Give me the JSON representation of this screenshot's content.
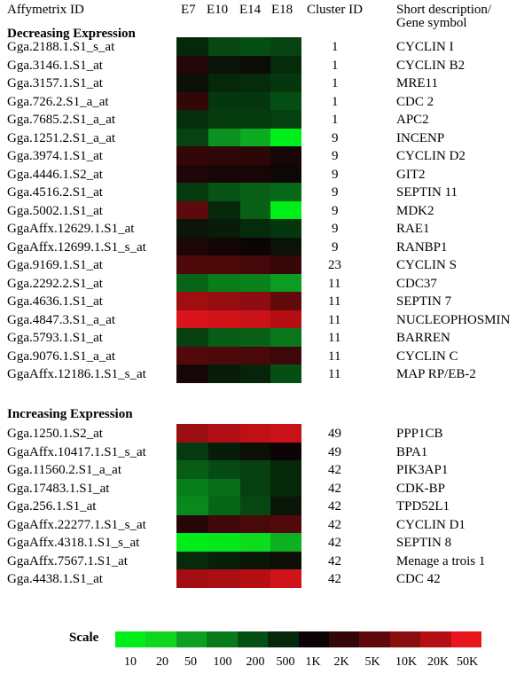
{
  "headers": {
    "probe_id": "Affymetrix ID",
    "samples": [
      "E7",
      "E10",
      "E14",
      "E18"
    ],
    "cluster_id": "Cluster ID",
    "description": "Short description/ Gene symbol"
  },
  "chart_data": {
    "type": "heatmap",
    "columns": [
      "E7",
      "E10",
      "E14",
      "E18"
    ],
    "scale": {
      "title": "Scale",
      "ticks": [
        "10",
        "20",
        "50",
        "100",
        "200",
        "500",
        "1K",
        "2K",
        "5K",
        "10K",
        "20K",
        "50K"
      ],
      "colors": [
        "#00ee1a",
        "#10d61e",
        "#0ba022",
        "#087a1a",
        "#064f14",
        "#05270a",
        "#0d0505",
        "#330708",
        "#5e0a0c",
        "#8a0d10",
        "#b50f14",
        "#e8161c"
      ]
    },
    "groups": [
      {
        "title": "Decreasing Expression",
        "rows": [
          {
            "id": "Gga.2188.1.S1_s_at",
            "cluster": "1",
            "symbol": "CYCLIN I",
            "levels": [
              6.0,
              5.2,
              5.0,
              5.3
            ]
          },
          {
            "id": "Gga.3146.1.S1_at",
            "cluster": "1",
            "symbol": "CYCLIN B2",
            "levels": [
              7.6,
              6.6,
              6.8,
              5.9
            ]
          },
          {
            "id": "Gga.3157.1.S1_at",
            "cluster": "1",
            "symbol": "MRE11",
            "levels": [
              6.7,
              6.0,
              5.9,
              5.6
            ]
          },
          {
            "id": "Gga.726.2.S1_a_at",
            "cluster": "1",
            "symbol": "CDC 2",
            "levels": [
              8.0,
              5.6,
              5.6,
              5.0
            ]
          },
          {
            "id": "Gga.7685.2.S1_a_at",
            "cluster": "1",
            "symbol": "APC2",
            "levels": [
              5.8,
              5.5,
              5.5,
              5.4
            ]
          },
          {
            "id": "Gga.1251.2.S1_a_at",
            "cluster": "9",
            "symbol": "INCENP",
            "levels": [
              5.3,
              3.4,
              2.8,
              1.0
            ]
          },
          {
            "id": "Gga.3974.1.S1_at",
            "cluster": "9",
            "symbol": "CYCLIN D2",
            "levels": [
              8.0,
              7.9,
              7.8,
              7.3
            ]
          },
          {
            "id": "Gga.4446.1.S2_at",
            "cluster": "9",
            "symbol": "GIT2",
            "levels": [
              7.5,
              7.3,
              7.3,
              6.9
            ]
          },
          {
            "id": "Gga.4516.2.S1_at",
            "cluster": "9",
            "symbol": "SEPTIN 11",
            "levels": [
              5.5,
              4.9,
              4.6,
              4.4
            ]
          },
          {
            "id": "Gga.5002.1.S1_at",
            "cluster": "9",
            "symbol": "MDK2",
            "levels": [
              9.0,
              6.0,
              4.6,
              1.0
            ]
          },
          {
            "id": "GgaAffx.12629.1.S1_at",
            "cluster": "9",
            "symbol": "RAE1",
            "levels": [
              6.5,
              6.3,
              5.9,
              5.6
            ]
          },
          {
            "id": "GgaAffx.12699.1.S1_s_at",
            "cluster": "9",
            "symbol": "RANBP1",
            "levels": [
              7.4,
              7.1,
              7.0,
              6.6
            ]
          },
          {
            "id": "Gga.9169.1.S1_at",
            "cluster": "23",
            "symbol": "CYCLIN S",
            "levels": [
              8.6,
              8.6,
              8.4,
              8.1
            ]
          },
          {
            "id": "Gga.2292.2.S1_at",
            "cluster": "11",
            "symbol": "CDC37",
            "levels": [
              4.5,
              3.9,
              3.8,
              3.1
            ]
          },
          {
            "id": "Gga.4636.1.S1_at",
            "cluster": "11",
            "symbol": "SEPTIN 7",
            "levels": [
              10.5,
              10.2,
              10.1,
              9.1
            ]
          },
          {
            "id": "Gga.4847.3.S1_a_at",
            "cluster": "11",
            "symbol": "NUCLEOPHOSMIN",
            "levels": [
              11.7,
              11.5,
              11.4,
              11.0
            ]
          },
          {
            "id": "Gga.5793.1.S1_at",
            "cluster": "11",
            "symbol": "BARREN",
            "levels": [
              5.4,
              4.7,
              4.6,
              4.1
            ]
          },
          {
            "id": "Gga.9076.1.S1_a_at",
            "cluster": "11",
            "symbol": "CYCLIN C",
            "levels": [
              8.7,
              8.6,
              8.5,
              8.2
            ]
          },
          {
            "id": "GgaAffx.12186.1.S1_s_at",
            "cluster": "11",
            "symbol": "MAP RP/EB-2",
            "levels": [
              7.3,
              6.3,
              6.1,
              5.0
            ]
          }
        ]
      },
      {
        "title": "Increasing Expression",
        "rows": [
          {
            "id": "Gga.1250.1.S2_at",
            "cluster": "49",
            "symbol": "PPP1CB",
            "levels": [
              10.4,
              10.9,
              11.2,
              11.4
            ]
          },
          {
            "id": "GgaAffx.10417.1.S1_s_at",
            "cluster": "49",
            "symbol": "BPA1",
            "levels": [
              5.5,
              6.3,
              6.7,
              7.0
            ]
          },
          {
            "id": "Gga.11560.2.S1_a_at",
            "cluster": "42",
            "symbol": "PIK3AP1",
            "levels": [
              4.7,
              5.1,
              5.4,
              6.0
            ]
          },
          {
            "id": "Gga.17483.1.S1_at",
            "cluster": "42",
            "symbol": "CDK-BP",
            "levels": [
              3.9,
              4.3,
              5.4,
              6.0
            ]
          },
          {
            "id": "Gga.256.1.S1_at",
            "cluster": "42",
            "symbol": "TPD52L1",
            "levels": [
              3.6,
              4.5,
              5.2,
              6.5
            ]
          },
          {
            "id": "GgaAffx.22277.1.S1_s_at",
            "cluster": "42",
            "symbol": "CYCLIN D1",
            "levels": [
              7.7,
              8.3,
              8.5,
              8.7
            ]
          },
          {
            "id": "GgaAffx.4318.1.S1_s_at",
            "cluster": "42",
            "symbol": "SEPTIN 8",
            "levels": [
              1.1,
              1.3,
              1.8,
              2.7
            ]
          },
          {
            "id": "GgaAffx.7567.1.S1_at",
            "cluster": "42",
            "symbol": "Menage a trois 1",
            "levels": [
              5.9,
              6.2,
              6.5,
              6.7
            ]
          },
          {
            "id": "Gga.4438.1.S1_at",
            "cluster": "42",
            "symbol": "CDC 42",
            "levels": [
              10.6,
              10.8,
              11.0,
              11.5
            ]
          }
        ]
      }
    ]
  }
}
